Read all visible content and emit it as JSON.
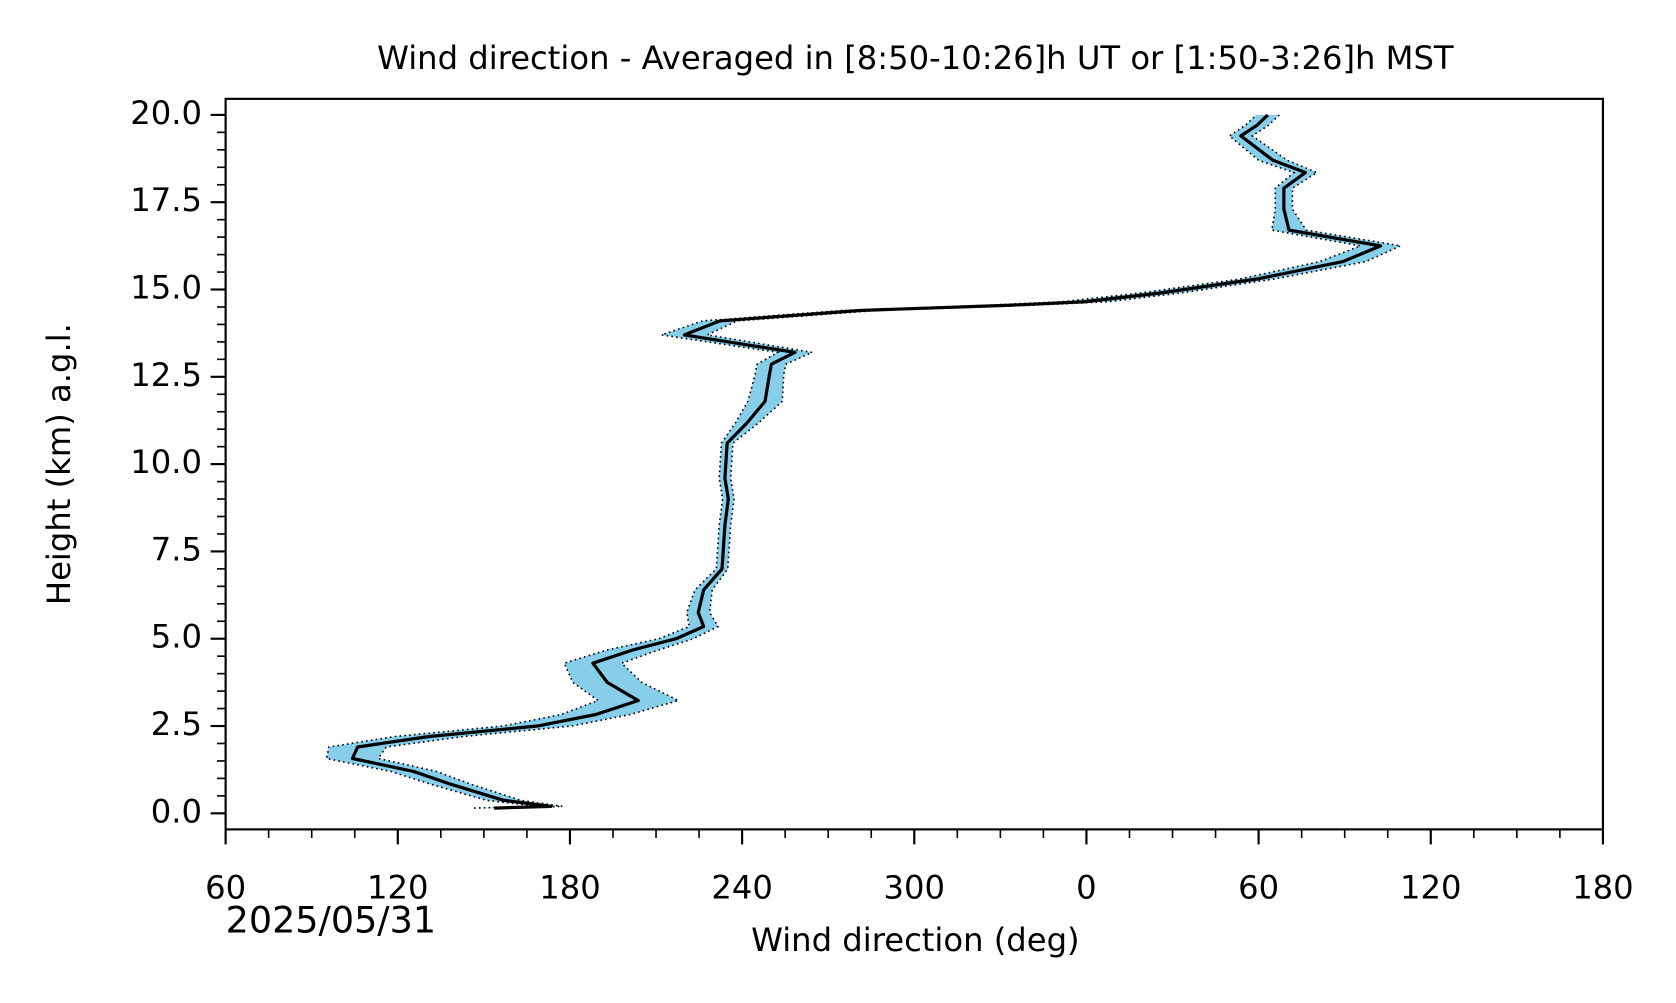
{
  "chart_data": {
    "type": "profile",
    "title": "Wind direction - Averaged in [8:50-10:26]h UT or [1:50-3:26]h MST",
    "xlabel": "Wind direction (deg)",
    "ylabel": "Height (km) a.g.l.",
    "annotation": "2025/05/31",
    "heights": [
      0.15,
      0.2,
      0.37,
      0.83,
      1.2,
      1.57,
      1.9,
      2.2,
      2.5,
      2.83,
      3.23,
      3.75,
      4.3,
      4.68,
      5.0,
      5.35,
      5.75,
      6.4,
      7.0,
      8.25,
      9.0,
      9.6,
      10.6,
      11.17,
      11.8,
      12.55,
      12.86,
      13.2,
      13.7,
      14.1,
      14.4,
      14.55,
      14.65,
      14.9,
      15.3,
      15.8,
      16.25,
      16.7,
      17.3,
      17.9,
      18.35,
      18.7,
      19.4,
      19.7,
      20.0
    ],
    "values": [
      153.6,
      173.4,
      157,
      138.6,
      125.5,
      104.2,
      106,
      131,
      168.6,
      189,
      203.8,
      193,
      188,
      202,
      217,
      226.6,
      224.7,
      226.6,
      233,
      234,
      235.2,
      234,
      234.8,
      241.6,
      248,
      249.5,
      250.2,
      258.4,
      219.9,
      232.2,
      280.9,
      333.3,
      359.5,
      385.7,
      419.4,
      449.4,
      462.5,
      430.6,
      428.8,
      428.8,
      436.3,
      425,
      413.8,
      419.4,
      423.2
    ],
    "errors": [
      7,
      4,
      6,
      7,
      8,
      9,
      10,
      12,
      12,
      12,
      14,
      12,
      10,
      9,
      6,
      5,
      4,
      3,
      2,
      2,
      2,
      2,
      2,
      4,
      6,
      5,
      5,
      6,
      8,
      6,
      6,
      8,
      8,
      7,
      6,
      8,
      7,
      6,
      3,
      3,
      4,
      5,
      4,
      4,
      4
    ],
    "color": "#000000",
    "band_color": "#87ceeb",
    "xlim": [
      60,
      540
    ],
    "xticks": [
      60,
      120,
      180,
      240,
      300,
      {
        "value": 360,
        "label": "0"
      },
      {
        "value": 420,
        "label": "60"
      },
      {
        "value": 480,
        "label": "120"
      },
      {
        "value": 540,
        "label": "180"
      }
    ],
    "ylim": [
      -0.46,
      20.46
    ],
    "yticks": [
      {
        "value": 0,
        "label": "0.0"
      },
      2.5,
      {
        "value": 5,
        "label": "5.0"
      },
      7.5,
      {
        "value": 10,
        "label": "10.0"
      },
      12.5,
      {
        "value": 15,
        "label": "15.0"
      },
      17.5,
      {
        "value": 20,
        "label": "20.0"
      }
    ]
  }
}
